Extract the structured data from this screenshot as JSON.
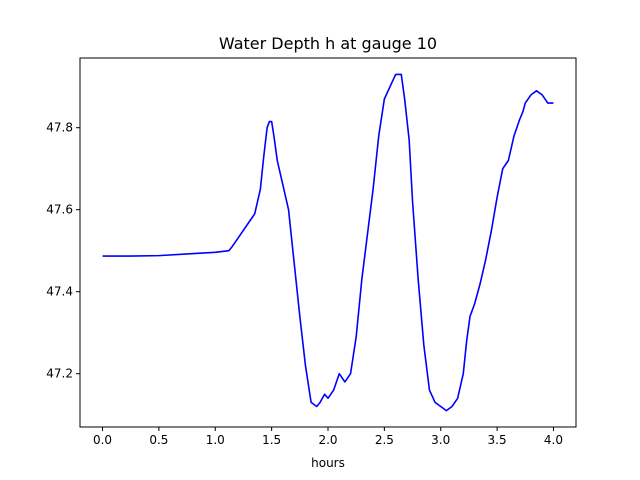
{
  "chart_data": {
    "type": "line",
    "title": "Water Depth h at gauge 10",
    "xlabel": "hours",
    "ylabel": "",
    "xlim": [
      -0.2,
      4.2
    ],
    "ylim": [
      47.07,
      47.97
    ],
    "xticks": [
      0.0,
      0.5,
      1.0,
      1.5,
      2.0,
      2.5,
      3.0,
      3.5,
      4.0
    ],
    "xtick_labels": [
      "0.0",
      "0.5",
      "1.0",
      "1.5",
      "2.0",
      "2.5",
      "3.0",
      "3.5",
      "4.0"
    ],
    "yticks": [
      47.2,
      47.4,
      47.6,
      47.8
    ],
    "ytick_labels": [
      "47.2",
      "47.4",
      "47.6",
      "47.8"
    ],
    "grid": false,
    "series": [
      {
        "color": "#0000ff",
        "x": [
          0.0,
          0.25,
          0.5,
          0.75,
          1.0,
          1.12,
          1.15,
          1.2,
          1.25,
          1.3,
          1.35,
          1.4,
          1.43,
          1.46,
          1.48,
          1.5,
          1.52,
          1.55,
          1.6,
          1.65,
          1.7,
          1.75,
          1.8,
          1.85,
          1.9,
          1.93,
          1.95,
          1.97,
          2.0,
          2.05,
          2.1,
          2.15,
          2.2,
          2.25,
          2.3,
          2.35,
          2.4,
          2.45,
          2.5,
          2.55,
          2.6,
          2.65,
          2.68,
          2.72,
          2.75,
          2.8,
          2.85,
          2.9,
          2.95,
          3.0,
          3.05,
          3.1,
          3.15,
          3.2,
          3.23,
          3.26,
          3.3,
          3.35,
          3.4,
          3.45,
          3.5,
          3.55,
          3.6,
          3.65,
          3.7,
          3.73,
          3.75,
          3.8,
          3.85,
          3.9,
          3.95,
          4.0
        ],
        "y": [
          47.487,
          47.487,
          47.488,
          47.492,
          47.496,
          47.5,
          47.51,
          47.53,
          47.55,
          47.57,
          47.59,
          47.65,
          47.73,
          47.8,
          47.815,
          47.815,
          47.78,
          47.72,
          47.66,
          47.6,
          47.47,
          47.34,
          47.22,
          47.13,
          47.12,
          47.13,
          47.14,
          47.15,
          47.14,
          47.16,
          47.2,
          47.18,
          47.2,
          47.29,
          47.43,
          47.54,
          47.65,
          47.78,
          47.87,
          47.9,
          47.93,
          47.93,
          47.87,
          47.77,
          47.62,
          47.43,
          47.27,
          47.16,
          47.13,
          47.12,
          47.11,
          47.12,
          47.14,
          47.2,
          47.28,
          47.34,
          47.37,
          47.42,
          47.48,
          47.55,
          47.63,
          47.7,
          47.72,
          47.78,
          47.82,
          47.84,
          47.86,
          47.88,
          47.89,
          47.88,
          47.86,
          47.86
        ]
      }
    ]
  }
}
